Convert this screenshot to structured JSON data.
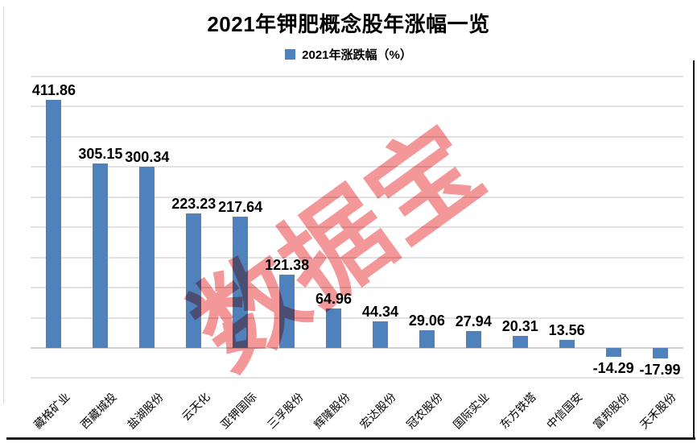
{
  "title": "2021年钾肥概念股年涨幅一览",
  "legend": {
    "label": "2021年涨跌幅（%）",
    "color": "#4F81BD"
  },
  "watermark": {
    "text": "数据宝",
    "color": "rgba(232,56,60,0.52)"
  },
  "chart_data": {
    "type": "bar",
    "title": "2021年钾肥概念股年涨幅一览",
    "legend_entries": [
      "2021年涨跌幅（%）"
    ],
    "categories": [
      "藏格矿业",
      "西藏城投",
      "盐湖股份",
      "云天化",
      "亚钾国际",
      "三孚股份",
      "辉隆股份",
      "宏达股份",
      "冠农股份",
      "国际实业",
      "东方铁塔",
      "中信国安",
      "富邦股份",
      "天禾股份"
    ],
    "values": [
      411.86,
      305.15,
      300.34,
      223.23,
      217.64,
      121.38,
      64.96,
      44.34,
      29.06,
      27.94,
      20.31,
      13.56,
      -14.29,
      -17.99
    ],
    "xlabel": "",
    "ylabel": "",
    "ylim": [
      -50,
      450
    ],
    "grid_step": 50,
    "grid": "horizontal",
    "y_tick_labels_visible": false,
    "bar_color": "#4F81BD",
    "value_labels_visible": true
  }
}
